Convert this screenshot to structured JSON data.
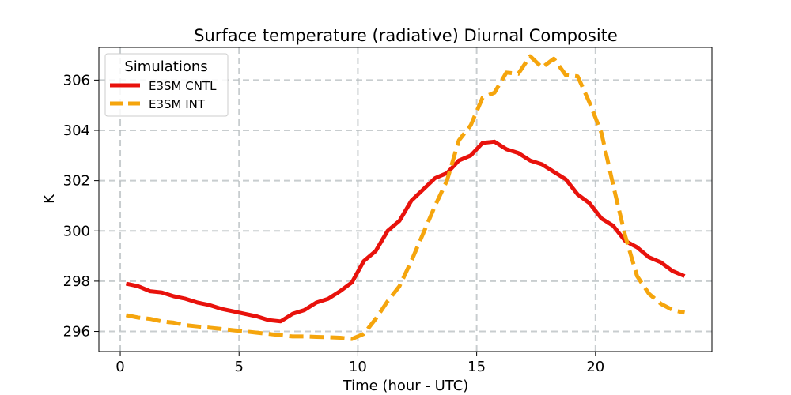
{
  "chart_data": {
    "type": "line",
    "title": "Surface temperature (radiative) Diurnal Composite",
    "xlabel": "Time (hour - UTC)",
    "ylabel": "K",
    "xlim": [
      -0.9,
      24.9
    ],
    "ylim": [
      295.2,
      307.3
    ],
    "xticks": [
      0,
      5,
      10,
      15,
      20
    ],
    "yticks": [
      296,
      298,
      300,
      302,
      304,
      306
    ],
    "grid": true,
    "grid_style": "dashed",
    "legend_title": "Simulations",
    "legend_position": "top-left",
    "series": [
      {
        "name": "E3SM CNTL",
        "color": "#e8120c",
        "dash": "solid",
        "x": [
          0.25,
          0.75,
          1.25,
          1.75,
          2.25,
          2.75,
          3.25,
          3.75,
          4.25,
          4.75,
          5.25,
          5.75,
          6.25,
          6.75,
          7.25,
          7.75,
          8.25,
          8.75,
          9.25,
          9.75,
          10.25,
          10.75,
          11.25,
          11.75,
          12.25,
          12.75,
          13.25,
          13.75,
          14.25,
          14.75,
          15.25,
          15.75,
          16.25,
          16.75,
          17.25,
          17.75,
          18.25,
          18.75,
          19.25,
          19.75,
          20.25,
          20.75,
          21.25,
          21.75,
          22.25,
          22.75,
          23.25,
          23.75
        ],
        "y": [
          297.9,
          297.8,
          297.6,
          297.55,
          297.4,
          297.3,
          297.15,
          297.05,
          296.9,
          296.8,
          296.7,
          296.6,
          296.45,
          296.4,
          296.7,
          296.85,
          297.15,
          297.3,
          297.6,
          297.95,
          298.8,
          299.2,
          300.0,
          300.4,
          301.2,
          301.65,
          302.1,
          302.3,
          302.8,
          303.0,
          303.5,
          303.55,
          303.25,
          303.1,
          302.8,
          302.65,
          302.35,
          302.05,
          301.45,
          301.1,
          300.5,
          300.2,
          299.6,
          299.35,
          298.95,
          298.75,
          298.4,
          298.2
        ]
      },
      {
        "name": "E3SM INT",
        "color": "#f5a50d",
        "dash": "dashed",
        "x": [
          0.25,
          0.75,
          1.25,
          1.75,
          2.25,
          2.75,
          3.25,
          3.75,
          4.25,
          4.75,
          5.25,
          5.75,
          6.25,
          6.75,
          7.25,
          7.75,
          8.25,
          8.75,
          9.25,
          9.75,
          10.25,
          10.75,
          11.25,
          11.75,
          12.25,
          12.75,
          13.25,
          13.75,
          14.25,
          14.75,
          15.25,
          15.75,
          16.25,
          16.75,
          17.25,
          17.75,
          18.25,
          18.75,
          19.25,
          19.75,
          20.25,
          20.75,
          21.25,
          21.75,
          22.25,
          22.75,
          23.25,
          23.75
        ],
        "y": [
          296.65,
          296.55,
          296.5,
          296.4,
          296.35,
          296.25,
          296.2,
          296.15,
          296.1,
          296.05,
          296.0,
          295.95,
          295.9,
          295.85,
          295.8,
          295.8,
          295.78,
          295.77,
          295.75,
          295.7,
          295.9,
          296.5,
          297.2,
          297.8,
          298.8,
          299.9,
          301.0,
          302.0,
          303.6,
          304.2,
          305.3,
          305.5,
          306.3,
          306.25,
          306.95,
          306.5,
          306.85,
          306.2,
          306.15,
          305.1,
          303.9,
          301.8,
          299.8,
          298.2,
          297.5,
          297.1,
          296.85,
          296.75
        ]
      }
    ]
  }
}
